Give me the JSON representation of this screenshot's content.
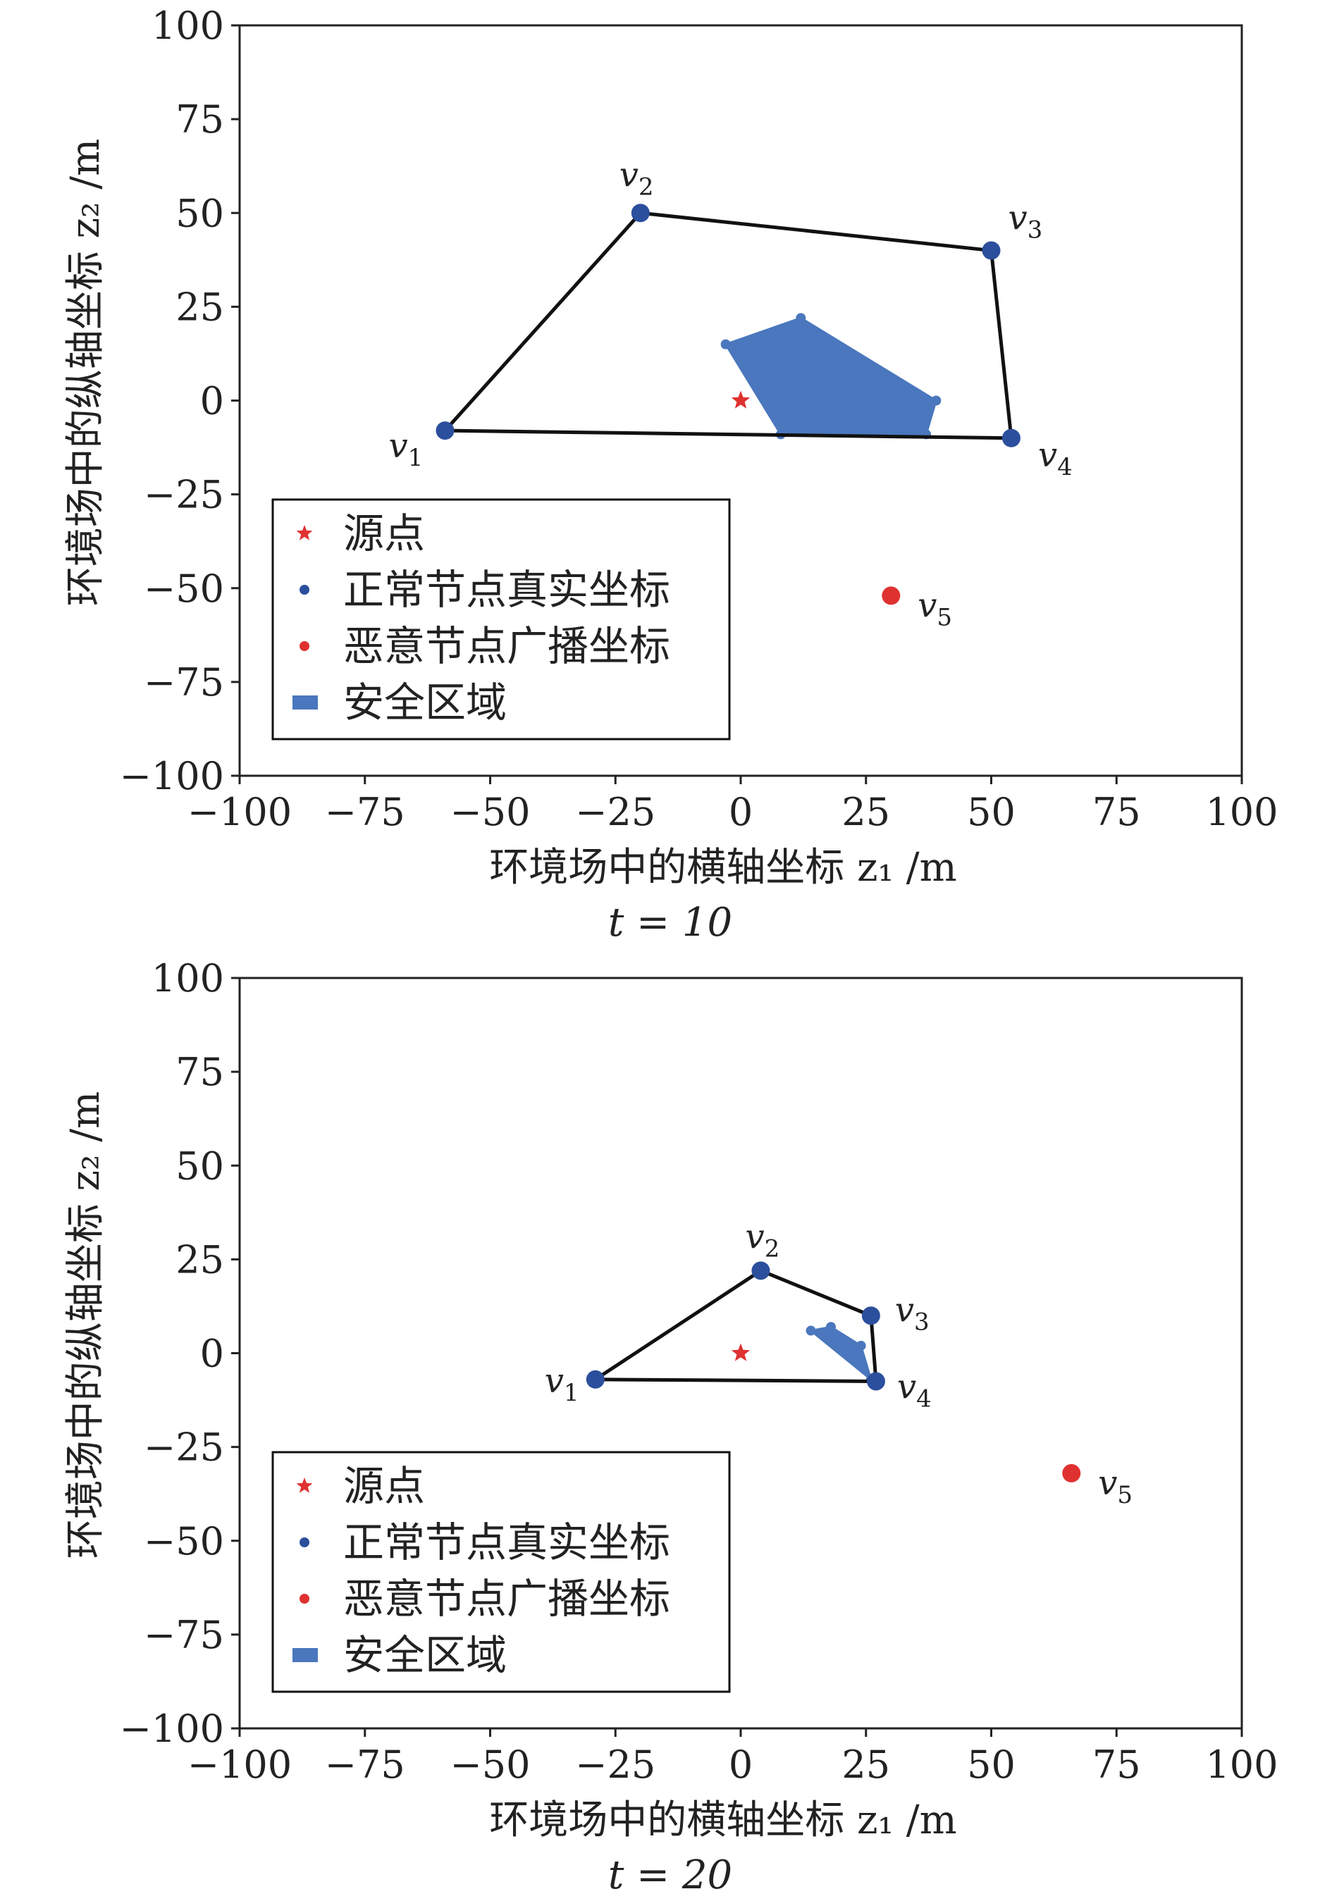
{
  "chart_data": [
    {
      "type": "scatter",
      "title": "t = 10",
      "xlabel": "环境场中的横轴坐标 z₁ /m",
      "ylabel": "环境场中的纵轴坐标 z₂ /m",
      "xlim": [
        -100,
        100
      ],
      "ylim": [
        -100,
        100
      ],
      "xticks": [
        "−100",
        "−75",
        "−50",
        "−25",
        "0",
        "25",
        "50",
        "75",
        "100"
      ],
      "yticks": [
        "−100",
        "−75",
        "−50",
        "−25",
        "0",
        "25",
        "50",
        "75",
        "100"
      ],
      "grid": false,
      "legend_position": "lower-left",
      "legend": [
        "源点",
        "正常节点真实坐标",
        "恶意节点广播坐标",
        "安全区域"
      ],
      "source": {
        "x": 0,
        "y": 0
      },
      "normal_nodes": [
        {
          "label": "v",
          "sub": "1",
          "x": -59,
          "y": -8
        },
        {
          "label": "v",
          "sub": "2",
          "x": -20,
          "y": 50
        },
        {
          "label": "v",
          "sub": "3",
          "x": 50,
          "y": 40
        },
        {
          "label": "v",
          "sub": "4",
          "x": 54,
          "y": -10
        }
      ],
      "malicious_nodes": [
        {
          "label": "v",
          "sub": "5",
          "x": 30,
          "y": -52
        }
      ],
      "safe_region": [
        {
          "x": -3,
          "y": 15
        },
        {
          "x": 12,
          "y": 22
        },
        {
          "x": 39,
          "y": 0
        },
        {
          "x": 37,
          "y": -9
        },
        {
          "x": 8,
          "y": -9
        }
      ]
    },
    {
      "type": "scatter",
      "title": "t = 20",
      "xlabel": "环境场中的横轴坐标 z₁ /m",
      "ylabel": "环境场中的纵轴坐标 z₂ /m",
      "xlim": [
        -100,
        100
      ],
      "ylim": [
        -100,
        100
      ],
      "xticks": [
        "−100",
        "−75",
        "−50",
        "−25",
        "0",
        "25",
        "50",
        "75",
        "100"
      ],
      "yticks": [
        "−100",
        "−75",
        "−50",
        "−25",
        "0",
        "25",
        "50",
        "75",
        "100"
      ],
      "grid": false,
      "legend_position": "lower-left",
      "legend": [
        "源点",
        "正常节点真实坐标",
        "恶意节点广播坐标",
        "安全区域"
      ],
      "source": {
        "x": 0,
        "y": 0
      },
      "normal_nodes": [
        {
          "label": "v",
          "sub": "1",
          "x": -29,
          "y": -7
        },
        {
          "label": "v",
          "sub": "2",
          "x": 4,
          "y": 22
        },
        {
          "label": "v",
          "sub": "3",
          "x": 26,
          "y": 10
        },
        {
          "label": "v",
          "sub": "4",
          "x": 27,
          "y": -7.5
        }
      ],
      "malicious_nodes": [
        {
          "label": "v",
          "sub": "5",
          "x": 66,
          "y": -32
        }
      ],
      "safe_region": [
        {
          "x": 14,
          "y": 6
        },
        {
          "x": 18,
          "y": 7
        },
        {
          "x": 24,
          "y": 2
        },
        {
          "x": 26,
          "y": -7
        }
      ]
    }
  ],
  "colors": {
    "normal": "#2b4f9c",
    "malicious": "#e03131",
    "safe": "#4a77bd",
    "axes": "#222222"
  }
}
